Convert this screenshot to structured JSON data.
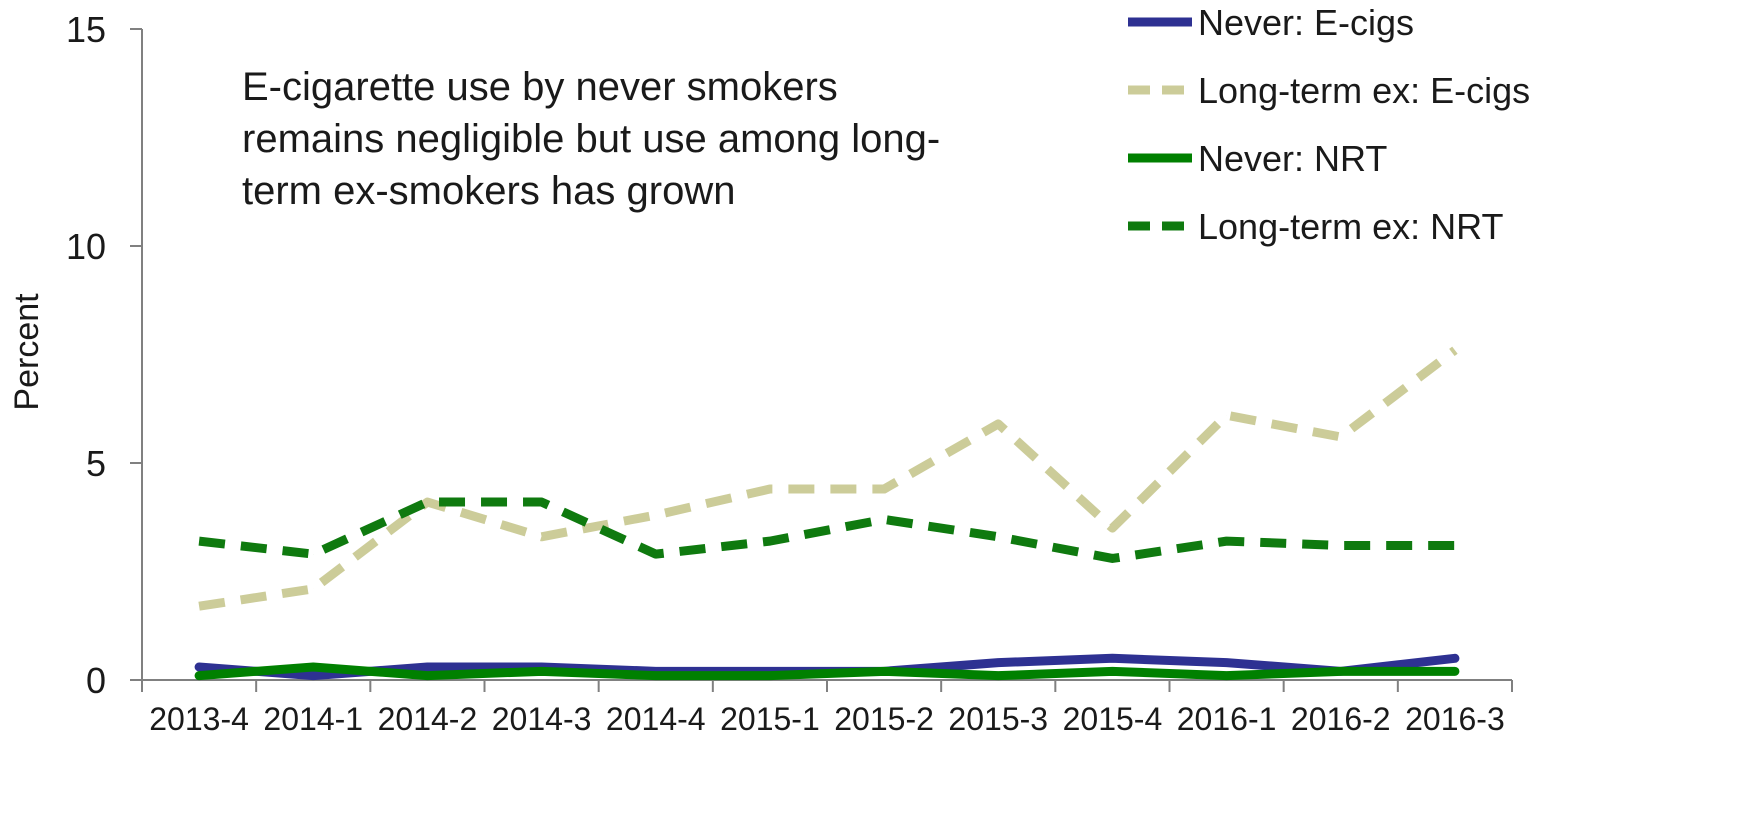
{
  "chart_data": {
    "type": "line",
    "ylabel": "Percent",
    "xlabel": "",
    "ylim": [
      0,
      15
    ],
    "yticks": [
      "0",
      "5",
      "10",
      "15"
    ],
    "grid": false,
    "legend_position": "top-right",
    "categories": [
      "2013-4",
      "2014-1",
      "2014-2",
      "2014-3",
      "2014-4",
      "2015-1",
      "2015-2",
      "2015-3",
      "2015-4",
      "2016-1",
      "2016-2",
      "2016-3"
    ],
    "annotation": [
      "E-cigarette use by never smokers",
      "remains negligible but use among long-",
      "term ex-smokers has grown"
    ],
    "series": [
      {
        "name": "Never: E-cigs",
        "color": "#2e3192",
        "dashed": false,
        "values": [
          0.3,
          0.1,
          0.3,
          0.3,
          0.2,
          0.2,
          0.2,
          0.4,
          0.5,
          0.4,
          0.2,
          0.5
        ]
      },
      {
        "name": "Long-term ex: E-cigs",
        "color": "#cccc99",
        "dashed": true,
        "values": [
          1.7,
          2.1,
          4.1,
          3.3,
          3.8,
          4.4,
          4.4,
          5.9,
          3.5,
          6.1,
          5.6,
          7.6
        ]
      },
      {
        "name": "Never: NRT",
        "color": "#008000",
        "dashed": false,
        "values": [
          0.1,
          0.3,
          0.1,
          0.2,
          0.1,
          0.1,
          0.2,
          0.1,
          0.2,
          0.1,
          0.2,
          0.2
        ]
      },
      {
        "name": "Long-term ex: NRT",
        "color": "#0f7a0f",
        "dashed": true,
        "values": [
          3.2,
          2.9,
          4.1,
          4.1,
          2.9,
          3.2,
          3.7,
          3.3,
          2.8,
          3.2,
          3.1,
          3.1
        ]
      }
    ]
  }
}
